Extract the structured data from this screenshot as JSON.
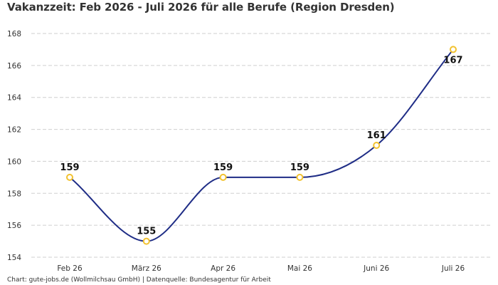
{
  "title": "Vakanzzeit: Feb 2026 - Juli 2026 für alle Berufe (Region Dresden)",
  "footer": "Chart: gute-jobs.de (Wollmilchsau GmbH) | Datenquelle: Bundesagentur für Arbeit",
  "colors": {
    "line": "#1f2d86",
    "marker": "#f2c230"
  },
  "chart_data": {
    "type": "line",
    "title": "Vakanzzeit: Feb 2026 - Juli 2026 für alle Berufe (Region Dresden)",
    "categories": [
      "Feb 26",
      "März 26",
      "Apr 26",
      "Mai 26",
      "Juni 26",
      "Juli 26"
    ],
    "values": [
      159,
      155,
      159,
      159,
      161,
      167
    ],
    "ylim": [
      154,
      168
    ],
    "yticks": [
      154,
      156,
      158,
      160,
      162,
      164,
      166,
      168
    ],
    "grid": true,
    "line_style": "smooth",
    "data_labels": true
  }
}
